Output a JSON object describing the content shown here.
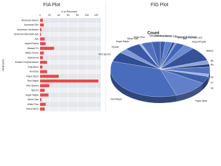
{
  "chart_data": [
    {
      "type": "barh",
      "title": "FIA Plot",
      "xlabel": "# of Records",
      "ylabel": "SPECIES",
      "categories": [
        "American Beech",
        "American Elm",
        "American Hornbeam",
        "American Mountain-ash",
        "Ash",
        "Aspen/Poplar",
        "Balsam Fir",
        "Black Cherry",
        "Basswood",
        "Eastern Hophornbeam",
        "Gray Birch",
        "Hemlock",
        "Paper Birch",
        "Red Maple",
        "Red Spruce",
        "Spruce",
        "Sugar Maple",
        "White Oak",
        "White Pine",
        "Yellow Birch"
      ],
      "values": [
        6,
        8,
        3,
        2,
        10,
        12,
        30,
        8,
        6,
        15,
        5,
        15,
        40,
        125,
        20,
        10,
        18,
        3,
        12,
        10
      ],
      "color": "#e8494b",
      "xlim": [
        0,
        130
      ],
      "xticks": [
        0,
        20,
        40,
        60,
        80,
        100,
        120
      ],
      "grid": true
    },
    {
      "type": "pie3d",
      "title": "FIG Plot",
      "subtitle": "Count",
      "categories": [
        "American Beech",
        "American Elm",
        "American Hornbeam",
        "American Mountain-ash",
        "Ash",
        "Aspen/Poplar",
        "Balsam Fir",
        "Black Cherry",
        "Basswood",
        "Eastern Hophornbeam",
        "Gray Birch",
        "Hemlock",
        "Paper Birch",
        "Red Maple",
        "Red Spruce",
        "Spruce",
        "Sugar Maple",
        "White Oak",
        "White Pine",
        "Yellow Birch"
      ],
      "values": [
        6,
        8,
        3,
        2,
        10,
        12,
        30,
        8,
        6,
        15,
        5,
        15,
        40,
        125,
        20,
        10,
        18,
        3,
        12,
        10
      ],
      "colors": [
        "#3b5ba9",
        "#5b7fcf",
        "#2e4a8a",
        "#7a9ad8",
        "#4466b8",
        "#6b8bd0",
        "#355299",
        "#8aa5dd",
        "#2b3f7a",
        "#5573c2",
        "#9bb3e3",
        "#3e5fae",
        "#6280c9",
        "#4a6cbd",
        "#2f4d93",
        "#7d99d6",
        "#3a58a3",
        "#a5bce6",
        "#5070bf",
        "#4161b0"
      ]
    }
  ]
}
